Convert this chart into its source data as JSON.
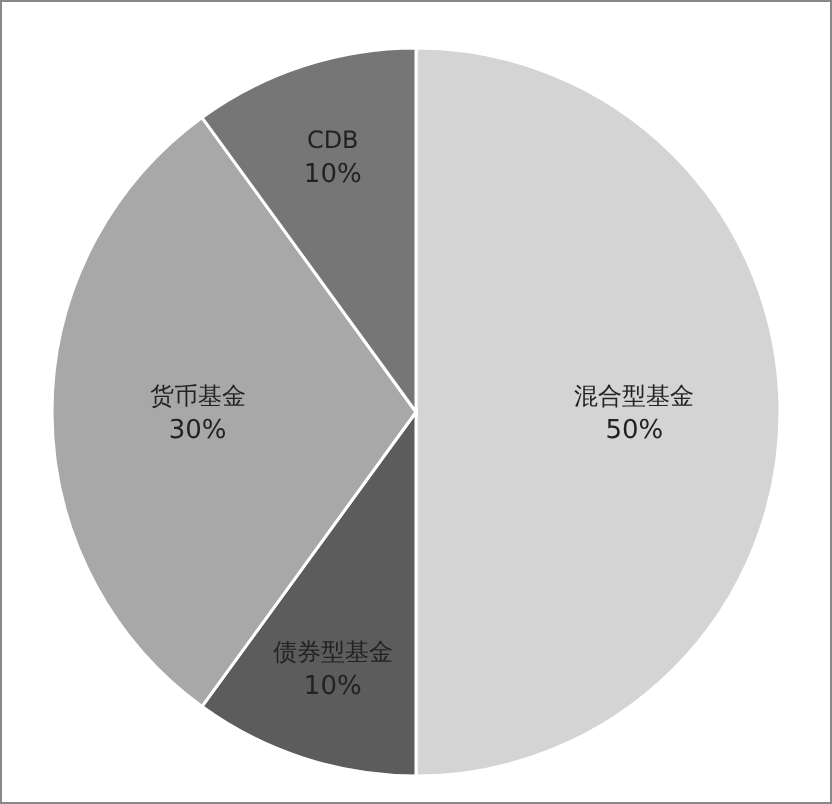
{
  "chart_data": {
    "type": "pie",
    "categories": [
      "混合型基金",
      "债券型基金",
      "货币基金",
      "CDB"
    ],
    "values": [
      50,
      10,
      30,
      10
    ],
    "colors": [
      "#d4d4d4",
      "#5c5c5c",
      "#a8a8a8",
      "#767676"
    ],
    "value_labels": [
      "50%",
      "10%",
      "30%",
      "10%"
    ]
  }
}
